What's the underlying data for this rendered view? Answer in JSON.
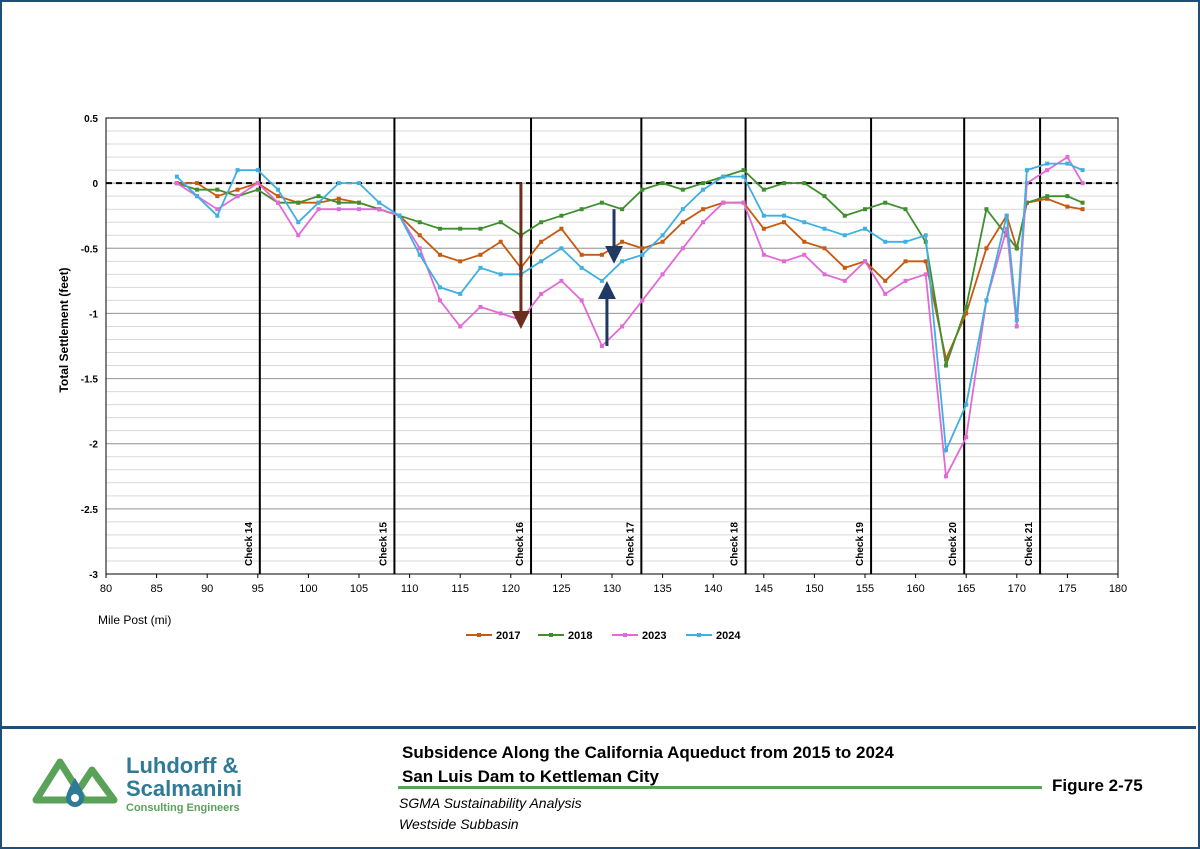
{
  "footer": {
    "title_line1": "Subsidence Along the California Aqueduct from 2015 to 2024",
    "title_line2": "San Luis Dam to Kettleman City",
    "sub_line1": "SGMA Sustainability Analysis",
    "sub_line2": "Westside Subbasin",
    "figure_label": "Figure 2-75"
  },
  "logo": {
    "name_line1": "Luhdorff &",
    "name_line2": "Scalmanini",
    "tagline": "Consulting Engineers"
  },
  "colors": {
    "2017": "#c55a11",
    "2018": "#3f8f2f",
    "2023": "#e26ad6",
    "2024": "#3fb0e0",
    "logo_green": "#5aa25a",
    "logo_blue": "#2f7a96"
  },
  "chart_data": {
    "type": "line",
    "title": "",
    "xlabel": "Mile Post (mi)",
    "ylabel": "Total Settlement (feet)",
    "xlim": [
      80,
      180
    ],
    "ylim": [
      -3,
      0.5
    ],
    "x_ticks": [
      80,
      85,
      90,
      95,
      100,
      105,
      110,
      115,
      120,
      125,
      130,
      135,
      140,
      145,
      150,
      155,
      160,
      165,
      170,
      175,
      180
    ],
    "y_ticks": [
      0.5,
      0,
      -0.5,
      -1,
      -1.5,
      -2,
      -2.5,
      -3
    ],
    "grid": "horizontal minor every 0.1",
    "legend": "bottom-center",
    "zero_line": "dashed",
    "checks": [
      {
        "label": "Check 14",
        "x": 95.2
      },
      {
        "label": "Check 15",
        "x": 108.5
      },
      {
        "label": "Check 16",
        "x": 122
      },
      {
        "label": "Check 17",
        "x": 132.9
      },
      {
        "label": "Check 18",
        "x": 143.2
      },
      {
        "label": "Check 19",
        "x": 155.6
      },
      {
        "label": "Check 20",
        "x": 164.8
      },
      {
        "label": "Check 21",
        "x": 172.3
      }
    ],
    "arrows": [
      {
        "x": 121,
        "from": 0,
        "to": -1.05,
        "color": "#6b2e1f"
      },
      {
        "x": 129.5,
        "from": -0.82,
        "to": -1.25,
        "color": "#203864",
        "direction": "up"
      },
      {
        "x": 130.2,
        "from": -0.55,
        "to": -0.2,
        "color": "#203864",
        "direction": "up"
      }
    ],
    "series": [
      {
        "name": "2017",
        "x": [
          87,
          89,
          91,
          93,
          95,
          97,
          99,
          101,
          103,
          105,
          107,
          109,
          111,
          113,
          115,
          117,
          119,
          121,
          123,
          125,
          127,
          129,
          131,
          133,
          135,
          137,
          139,
          141,
          143,
          145,
          147,
          149,
          151,
          153,
          155,
          157,
          159,
          161,
          163,
          165,
          167,
          169,
          170,
          171,
          173,
          175,
          176.5
        ],
        "y": [
          0.0,
          0.0,
          -0.1,
          -0.05,
          0.0,
          -0.1,
          -0.15,
          -0.15,
          -0.12,
          -0.15,
          -0.2,
          -0.25,
          -0.4,
          -0.55,
          -0.6,
          -0.55,
          -0.45,
          -0.65,
          -0.45,
          -0.35,
          -0.55,
          -0.55,
          -0.45,
          -0.5,
          -0.45,
          -0.3,
          -0.2,
          -0.15,
          -0.15,
          -0.35,
          -0.3,
          -0.45,
          -0.5,
          -0.65,
          -0.6,
          -0.75,
          -0.6,
          -0.6,
          -1.35,
          -1.0,
          -0.5,
          -0.25,
          -0.5,
          -0.15,
          -0.12,
          -0.18,
          -0.2
        ]
      },
      {
        "name": "2018",
        "x": [
          87,
          89,
          91,
          93,
          95,
          97,
          99,
          101,
          103,
          105,
          107,
          109,
          111,
          113,
          115,
          117,
          119,
          121,
          123,
          125,
          127,
          129,
          131,
          133,
          135,
          137,
          139,
          141,
          143,
          145,
          147,
          149,
          151,
          153,
          155,
          157,
          159,
          161,
          163,
          165,
          167,
          169,
          170,
          171,
          173,
          175,
          176.5
        ],
        "y": [
          0.0,
          -0.05,
          -0.05,
          -0.1,
          -0.05,
          -0.15,
          -0.15,
          -0.1,
          -0.15,
          -0.15,
          -0.2,
          -0.25,
          -0.3,
          -0.35,
          -0.35,
          -0.35,
          -0.3,
          -0.4,
          -0.3,
          -0.25,
          -0.2,
          -0.15,
          -0.2,
          -0.05,
          0.0,
          -0.05,
          0.0,
          0.05,
          0.1,
          -0.05,
          0.0,
          0.0,
          -0.1,
          -0.25,
          -0.2,
          -0.15,
          -0.2,
          -0.45,
          -1.4,
          -0.95,
          -0.2,
          -0.4,
          -0.5,
          -0.15,
          -0.1,
          -0.1,
          -0.15
        ]
      },
      {
        "name": "2023",
        "x": [
          87,
          89,
          91,
          93,
          95,
          97,
          99,
          101,
          103,
          105,
          107,
          109,
          111,
          113,
          115,
          117,
          119,
          121,
          123,
          125,
          127,
          129,
          131,
          133,
          135,
          137,
          139,
          141,
          143,
          145,
          147,
          149,
          151,
          153,
          155,
          157,
          159,
          161,
          163,
          165,
          167,
          169,
          170,
          171,
          173,
          175,
          176.5
        ],
        "y": [
          0.0,
          -0.1,
          -0.2,
          -0.1,
          0.0,
          -0.15,
          -0.4,
          -0.2,
          -0.2,
          -0.2,
          -0.2,
          -0.25,
          -0.5,
          -0.9,
          -1.1,
          -0.95,
          -1.0,
          -1.05,
          -0.85,
          -0.75,
          -0.9,
          -1.25,
          -1.1,
          -0.9,
          -0.7,
          -0.5,
          -0.3,
          -0.15,
          -0.15,
          -0.55,
          -0.6,
          -0.55,
          -0.7,
          -0.75,
          -0.6,
          -0.85,
          -0.75,
          -0.7,
          -2.25,
          -1.95,
          -0.9,
          -0.35,
          -1.1,
          0.0,
          0.1,
          0.2,
          0.0
        ]
      },
      {
        "name": "2024",
        "x": [
          87,
          89,
          91,
          93,
          95,
          97,
          99,
          101,
          103,
          105,
          107,
          109,
          111,
          113,
          115,
          117,
          119,
          121,
          123,
          125,
          127,
          129,
          131,
          133,
          135,
          137,
          139,
          141,
          143,
          145,
          147,
          149,
          151,
          153,
          155,
          157,
          159,
          161,
          163,
          165,
          167,
          169,
          170,
          171,
          173,
          175,
          176.5
        ],
        "y": [
          0.05,
          -0.1,
          -0.25,
          0.1,
          0.1,
          -0.05,
          -0.3,
          -0.15,
          0.0,
          0.0,
          -0.15,
          -0.25,
          -0.55,
          -0.8,
          -0.85,
          -0.65,
          -0.7,
          -0.7,
          -0.6,
          -0.5,
          -0.65,
          -0.75,
          -0.6,
          -0.55,
          -0.4,
          -0.2,
          -0.05,
          0.05,
          0.05,
          -0.25,
          -0.25,
          -0.3,
          -0.35,
          -0.4,
          -0.35,
          -0.45,
          -0.45,
          -0.4,
          -2.05,
          -1.7,
          -0.9,
          -0.25,
          -1.05,
          0.1,
          0.15,
          0.15,
          0.1
        ]
      }
    ]
  }
}
